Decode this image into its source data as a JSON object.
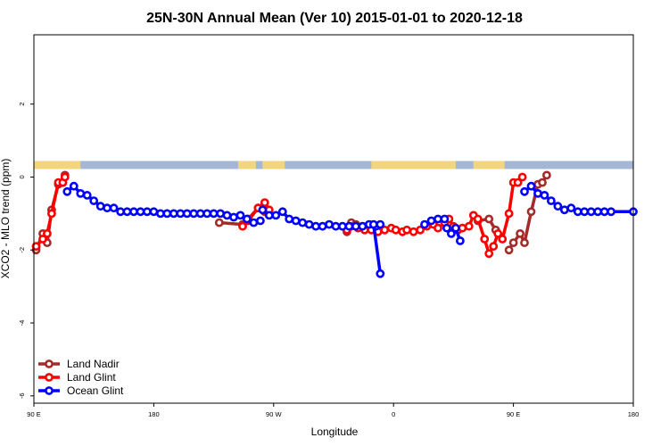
{
  "chart_data": {
    "type": "line",
    "title": "25N-30N Annual Mean (Ver 10)   2015-01-01 to 2020-12-18",
    "xlabel": "Longitude",
    "ylabel": "XCO2 - MLO trend (ppm)",
    "xlim": [
      -90,
      180
    ],
    "ylim": [
      -6.2,
      3.9
    ],
    "x_ticks": [
      {
        "value": -90,
        "label": "90 E"
      },
      {
        "value": -36,
        "label": "180"
      },
      {
        "value": 18,
        "label": "90 W"
      },
      {
        "value": 72,
        "label": "0"
      },
      {
        "value": 126,
        "label": "90 E"
      },
      {
        "value": 180,
        "label": "180"
      }
    ],
    "y_ticks": [
      {
        "value": -6,
        "label": "-6"
      },
      {
        "value": -4,
        "label": "-4"
      },
      {
        "value": -2,
        "label": "-2"
      },
      {
        "value": 0,
        "label": "0"
      },
      {
        "value": 2,
        "label": "2"
      }
    ],
    "grid": false,
    "legend_position": "bottom-left",
    "land_mask": {
      "y_range": [
        0.22,
        0.44
      ],
      "ocean_color": "#a4b8d6",
      "land_color": "#f2d57e",
      "land_segments": [
        [
          -90,
          -69
        ],
        [
          2,
          10
        ],
        [
          13,
          23
        ],
        [
          62,
          100
        ],
        [
          108,
          122
        ]
      ]
    },
    "series": [
      {
        "name": "Land Nadir",
        "color": "#a52a2a",
        "segments": [
          [
            [
              -89,
              -2.0
            ],
            [
              -86,
              -1.55
            ],
            [
              -84,
              -1.8
            ],
            [
              -82,
              -0.9
            ],
            [
              -79,
              -0.2
            ],
            [
              -77,
              -0.15
            ],
            [
              -76,
              0.05
            ]
          ],
          [
            [
              -6.5,
              -1.25
            ],
            [
              4,
              -1.3
            ],
            [
              6.5,
              -1.15
            ],
            [
              11,
              -0.85
            ],
            [
              14,
              -0.95
            ]
          ],
          [
            [
              51,
              -1.5
            ],
            [
              53,
              -1.25
            ],
            [
              55,
              -1.3
            ],
            [
              58,
              -1.35
            ],
            [
              61,
              -1.4
            ],
            [
              64,
              -1.4
            ]
          ],
          [
            [
              110,
              -1.2
            ],
            [
              115,
              -1.15
            ],
            [
              118,
              -1.45
            ]
          ],
          [
            [
              124,
              -2.0
            ],
            [
              126,
              -1.8
            ],
            [
              129,
              -1.55
            ],
            [
              131,
              -1.8
            ],
            [
              134,
              -0.95
            ],
            [
              137,
              -0.2
            ],
            [
              139,
              -0.15
            ],
            [
              141,
              0.05
            ]
          ]
        ]
      },
      {
        "name": "Land Glint",
        "color": "#ff0000",
        "segments": [
          [
            [
              -89,
              -1.9
            ],
            [
              -86,
              -1.7
            ],
            [
              -84,
              -1.55
            ],
            [
              -82,
              -1.0
            ],
            [
              -79,
              -0.15
            ],
            [
              -77,
              -0.15
            ],
            [
              -76,
              0.0
            ]
          ],
          [
            [
              4,
              -1.35
            ],
            [
              6.5,
              -1.2
            ],
            [
              11,
              -0.85
            ],
            [
              14,
              -0.7
            ],
            [
              16,
              -0.9
            ]
          ],
          [
            [
              51,
              -1.45
            ],
            [
              53,
              -1.35
            ],
            [
              56,
              -1.4
            ],
            [
              59,
              -1.45
            ],
            [
              62,
              -1.45
            ],
            [
              65,
              -1.5
            ],
            [
              68,
              -1.45
            ],
            [
              71,
              -1.4
            ],
            [
              73,
              -1.45
            ],
            [
              76,
              -1.5
            ],
            [
              78,
              -1.45
            ],
            [
              81,
              -1.5
            ],
            [
              84,
              -1.45
            ],
            [
              87,
              -1.35
            ],
            [
              90,
              -1.3
            ],
            [
              92,
              -1.4
            ],
            [
              95,
              -1.25
            ],
            [
              97,
              -1.15
            ],
            [
              99,
              -1.35
            ],
            [
              101,
              -1.45
            ],
            [
              103,
              -1.4
            ],
            [
              106,
              -1.35
            ],
            [
              108,
              -1.05
            ],
            [
              110,
              -1.15
            ],
            [
              113,
              -1.7
            ],
            [
              115,
              -2.1
            ],
            [
              117,
              -1.9
            ],
            [
              119,
              -1.55
            ],
            [
              121,
              -1.7
            ],
            [
              124,
              -1.0
            ],
            [
              126,
              -0.15
            ],
            [
              128,
              -0.15
            ],
            [
              130,
              0.0
            ]
          ]
        ]
      },
      {
        "name": "Ocean Glint",
        "color": "#0000ff",
        "segments": [
          [
            [
              -75,
              -0.4
            ],
            [
              -72,
              -0.25
            ],
            [
              -69,
              -0.45
            ],
            [
              -66,
              -0.5
            ],
            [
              -63,
              -0.65
            ],
            [
              -60,
              -0.8
            ],
            [
              -57,
              -0.85
            ],
            [
              -54,
              -0.85
            ],
            [
              -51,
              -0.95
            ],
            [
              -48,
              -0.95
            ],
            [
              -45,
              -0.95
            ],
            [
              -42,
              -0.95
            ],
            [
              -39,
              -0.95
            ],
            [
              -36,
              -0.95
            ],
            [
              -33,
              -1.0
            ],
            [
              -30,
              -1.0
            ],
            [
              -27,
              -1.0
            ],
            [
              -24,
              -1.0
            ],
            [
              -21,
              -1.0
            ],
            [
              -18,
              -1.0
            ],
            [
              -15,
              -1.0
            ],
            [
              -12,
              -1.0
            ],
            [
              -9,
              -1.0
            ],
            [
              -6,
              -1.0
            ],
            [
              -3,
              -1.05
            ],
            [
              0,
              -1.1
            ],
            [
              3,
              -1.05
            ],
            [
              6,
              -1.15
            ],
            [
              9,
              -1.25
            ],
            [
              12,
              -1.2
            ]
          ],
          [
            [
              13,
              -0.9
            ],
            [
              16,
              -1.05
            ],
            [
              19,
              -1.05
            ],
            [
              22,
              -0.95
            ],
            [
              25,
              -1.15
            ],
            [
              28,
              -1.2
            ],
            [
              31,
              -1.25
            ],
            [
              34,
              -1.3
            ],
            [
              37,
              -1.35
            ],
            [
              40,
              -1.35
            ],
            [
              43,
              -1.3
            ],
            [
              46,
              -1.35
            ],
            [
              49,
              -1.35
            ],
            [
              52,
              -1.35
            ],
            [
              55,
              -1.35
            ],
            [
              58,
              -1.35
            ],
            [
              61,
              -1.3
            ],
            [
              64,
              -1.35
            ],
            [
              66,
              -1.3
            ]
          ],
          [
            [
              63,
              -1.3
            ],
            [
              66,
              -2.65
            ]
          ],
          [
            [
              86,
              -1.3
            ],
            [
              89,
              -1.2
            ]
          ],
          [
            [
              92,
              -1.15
            ],
            [
              95,
              -1.15
            ]
          ],
          [
            [
              96,
              -1.4
            ],
            [
              98,
              -1.55
            ],
            [
              100,
              -1.4
            ],
            [
              102,
              -1.75
            ]
          ],
          [
            [
              131,
              -0.4
            ],
            [
              134,
              -0.25
            ],
            [
              137,
              -0.45
            ],
            [
              140,
              -0.5
            ],
            [
              143,
              -0.65
            ],
            [
              146,
              -0.8
            ],
            [
              149,
              -0.9
            ],
            [
              152,
              -0.85
            ],
            [
              155,
              -0.95
            ],
            [
              158,
              -0.95
            ],
            [
              161,
              -0.95
            ],
            [
              164,
              -0.95
            ],
            [
              167,
              -0.95
            ],
            [
              170,
              -0.95
            ],
            [
              180,
              -0.95
            ]
          ]
        ]
      }
    ]
  }
}
